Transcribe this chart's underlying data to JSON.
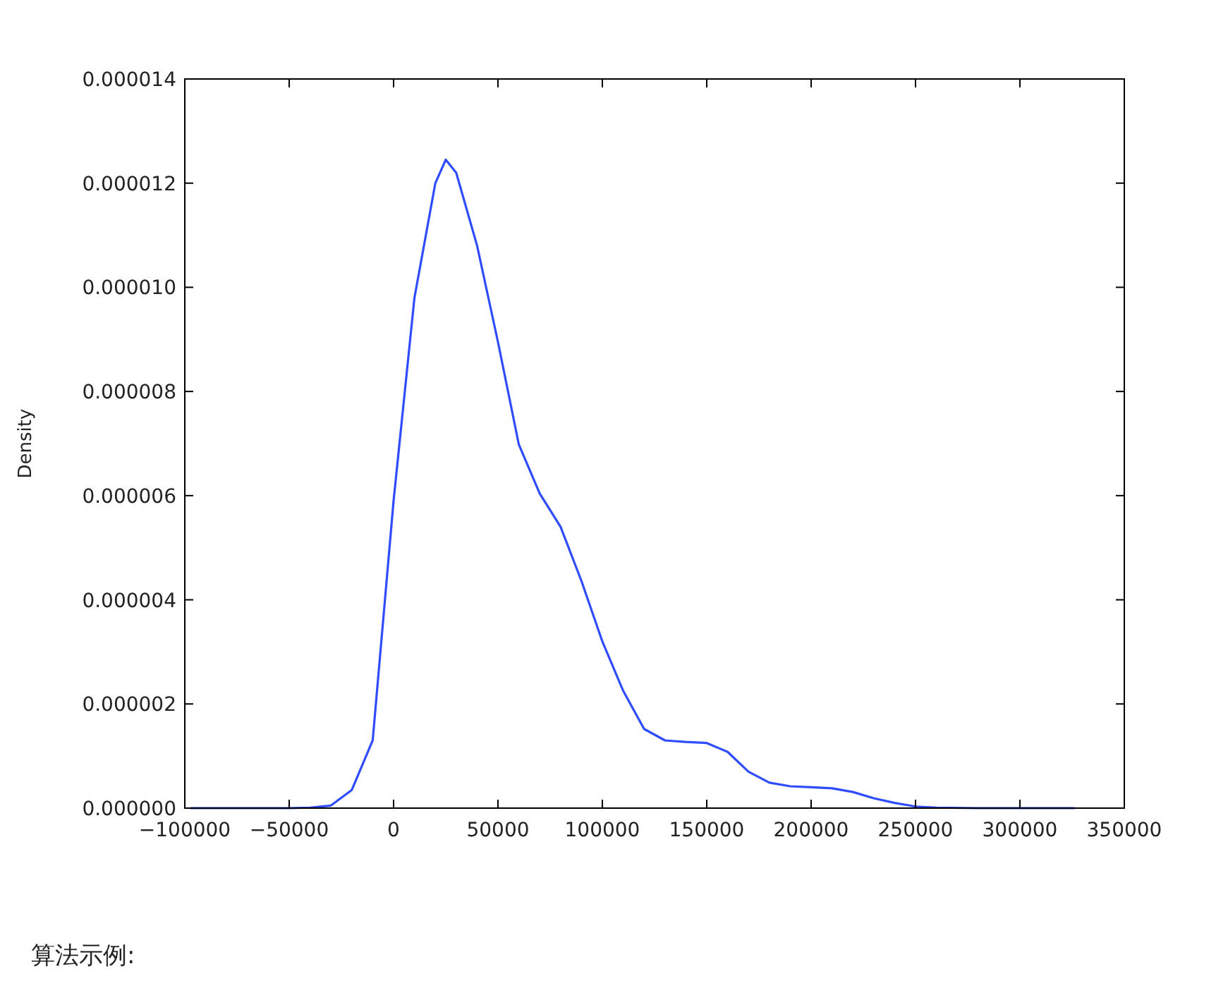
{
  "chart_data": {
    "type": "line",
    "ylabel": "Density",
    "annotations": [
      "算法示例:"
    ],
    "x": [
      -97000,
      -60000,
      -50000,
      -40000,
      -30000,
      -20000,
      -10000,
      0,
      10000,
      20000,
      25000,
      30000,
      40000,
      50000,
      60000,
      70000,
      80000,
      90000,
      100000,
      110000,
      120000,
      130000,
      140000,
      150000,
      160000,
      170000,
      180000,
      190000,
      200000,
      210000,
      220000,
      230000,
      240000,
      250000,
      260000,
      280000,
      326000
    ],
    "values": [
      0,
      0,
      0,
      1e-08,
      5e-08,
      3.5e-07,
      1.3e-06,
      5.9e-06,
      9.8e-06,
      1.2e-05,
      1.245e-05,
      1.22e-05,
      1.08e-05,
      8.95e-06,
      6.98e-06,
      6.04e-06,
      5.4e-06,
      4.36e-06,
      3.2e-06,
      2.25e-06,
      1.52e-06,
      1.3e-06,
      1.27e-06,
      1.25e-06,
      1.08e-06,
      7e-07,
      4.9e-07,
      4.2e-07,
      4e-07,
      3.8e-07,
      3.1e-07,
      1.9e-07,
      1e-07,
      3e-08,
      1e-08,
      0,
      0
    ],
    "color": "#2f4dff",
    "xlim": [
      -100000,
      350000
    ],
    "ylim": [
      0,
      1.4e-05
    ],
    "xticks": [
      {
        "value": -100000,
        "label": "−100000"
      },
      {
        "value": -50000,
        "label": "−50000"
      },
      0,
      50000,
      100000,
      150000,
      200000,
      250000,
      300000,
      350000
    ],
    "yticks": [
      {
        "value": 0,
        "label": "0.000000"
      },
      {
        "value": 2e-06,
        "label": "0.000002"
      },
      {
        "value": 4e-06,
        "label": "0.000004"
      },
      {
        "value": 6e-06,
        "label": "0.000006"
      },
      {
        "value": 8e-06,
        "label": "0.000008"
      },
      {
        "value": 1e-05,
        "label": "0.000010"
      },
      {
        "value": 1.2e-05,
        "label": "0.000012"
      },
      {
        "value": 1.4e-05,
        "label": "0.000014"
      }
    ]
  }
}
